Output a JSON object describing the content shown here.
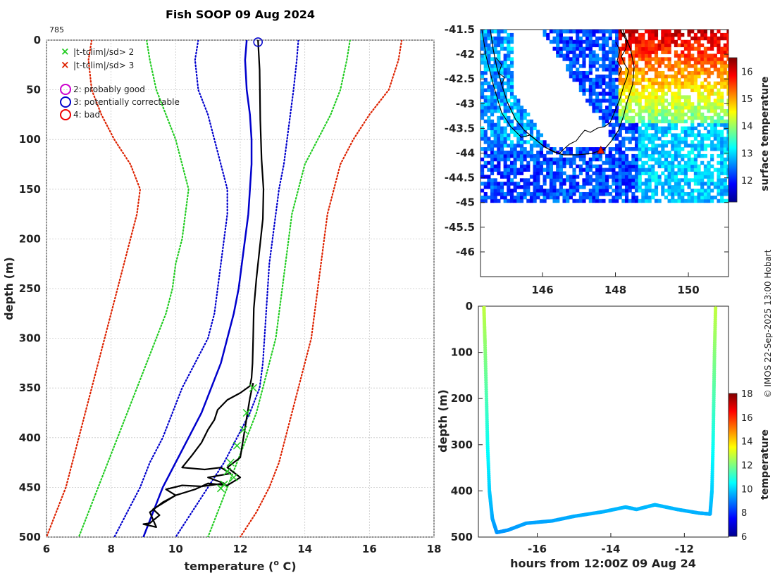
{
  "title": "Fish SOOP 09 Aug 2024",
  "profile_id": "785",
  "credit": "© IMOS 22-Sep-2025 13:00 Hobart",
  "legend": {
    "flag2": "|t-tclim|/sd> 2",
    "flag3": "|t-tclim|/sd> 3",
    "qc2": "2: probably good",
    "qc3": "3: potentially correctable",
    "qc4": "4: bad"
  },
  "colors": {
    "green": "#22cc22",
    "red": "#dd2200",
    "blue": "#0000cc",
    "magenta": "#cc00cc",
    "black": "#000000"
  },
  "chart_data": [
    {
      "type": "line",
      "name": "profile",
      "xlabel_prefix": "temperature (",
      "xlabel_sup": "o",
      "xlabel_suffix": " C)",
      "ylabel": "depth (m)",
      "xlim": [
        6,
        18
      ],
      "ylim": [
        500,
        0
      ],
      "xticks": [
        "6",
        "8",
        "10",
        "12",
        "14",
        "16",
        "18"
      ],
      "yticks": [
        "0",
        "50",
        "100",
        "150",
        "200",
        "250",
        "300",
        "350",
        "400",
        "450",
        "500"
      ],
      "depth": [
        0,
        20,
        50,
        75,
        100,
        125,
        150,
        175,
        200,
        225,
        250,
        275,
        300,
        325,
        350,
        375,
        400,
        425,
        450,
        475,
        500
      ],
      "series": [
        {
          "name": "clim -3sd",
          "color": "red",
          "style": "dotted",
          "values": [
            7.4,
            7.3,
            7.4,
            7.7,
            8.1,
            8.6,
            8.9,
            8.8,
            8.6,
            8.4,
            8.2,
            8.0,
            7.8,
            7.6,
            7.4,
            7.2,
            7.0,
            6.8,
            6.6,
            6.3,
            6.0
          ]
        },
        {
          "name": "clim -2sd",
          "color": "green",
          "style": "dotted",
          "values": [
            9.1,
            9.2,
            9.4,
            9.7,
            10.0,
            10.2,
            10.4,
            10.3,
            10.2,
            10.0,
            9.9,
            9.7,
            9.4,
            9.1,
            8.8,
            8.5,
            8.2,
            7.9,
            7.6,
            7.3,
            7.0
          ]
        },
        {
          "name": "clim -1sd",
          "color": "blue",
          "style": "dotted",
          "values": [
            10.7,
            10.6,
            10.7,
            11.0,
            11.2,
            11.4,
            11.6,
            11.6,
            11.5,
            11.4,
            11.3,
            11.2,
            11.0,
            10.6,
            10.2,
            9.9,
            9.6,
            9.2,
            8.9,
            8.5,
            8.1
          ]
        },
        {
          "name": "climatology",
          "color": "blue",
          "style": "solid",
          "values": [
            12.2,
            12.15,
            12.2,
            12.3,
            12.35,
            12.35,
            12.3,
            12.25,
            12.15,
            12.05,
            11.95,
            11.8,
            11.6,
            11.4,
            11.1,
            10.8,
            10.4,
            10.0,
            9.6,
            9.3,
            9.0
          ]
        },
        {
          "name": "clim +1sd",
          "color": "blue",
          "style": "dotted",
          "values": [
            13.8,
            13.75,
            13.65,
            13.55,
            13.45,
            13.35,
            13.2,
            13.1,
            13.0,
            12.9,
            12.85,
            12.8,
            12.75,
            12.7,
            12.6,
            12.3,
            11.9,
            11.5,
            11.0,
            10.5,
            10.0
          ]
        },
        {
          "name": "clim +2sd",
          "color": "green",
          "style": "dotted",
          "values": [
            15.4,
            15.3,
            15.1,
            14.8,
            14.4,
            14.0,
            13.8,
            13.6,
            13.5,
            13.4,
            13.3,
            13.2,
            13.1,
            12.9,
            12.7,
            12.5,
            12.2,
            11.9,
            11.6,
            11.3,
            11.0
          ]
        },
        {
          "name": "clim +3sd",
          "color": "red",
          "style": "dotted",
          "values": [
            17.0,
            16.9,
            16.6,
            16.0,
            15.5,
            15.1,
            14.9,
            14.7,
            14.6,
            14.5,
            14.4,
            14.3,
            14.2,
            14.0,
            13.8,
            13.6,
            13.4,
            13.2,
            12.9,
            12.5,
            12.0
          ]
        }
      ],
      "observed": {
        "name": "observed profile",
        "color": "black",
        "points": [
          [
            12.55,
            0
          ],
          [
            12.6,
            30
          ],
          [
            12.62,
            80
          ],
          [
            12.66,
            120
          ],
          [
            12.72,
            150
          ],
          [
            12.7,
            180
          ],
          [
            12.6,
            210
          ],
          [
            12.5,
            240
          ],
          [
            12.42,
            270
          ],
          [
            12.4,
            300
          ],
          [
            12.38,
            325
          ],
          [
            12.35,
            340
          ],
          [
            12.3,
            348
          ],
          [
            12.0,
            355
          ],
          [
            11.6,
            362
          ],
          [
            11.3,
            372
          ],
          [
            11.2,
            382
          ],
          [
            11.0,
            392
          ],
          [
            10.8,
            405
          ],
          [
            10.5,
            418
          ],
          [
            10.2,
            430
          ],
          [
            10.9,
            432
          ],
          [
            11.4,
            430
          ],
          [
            11.7,
            436
          ],
          [
            11.0,
            440
          ],
          [
            11.5,
            446
          ],
          [
            10.8,
            449
          ],
          [
            10.2,
            448
          ],
          [
            9.7,
            452
          ],
          [
            10.0,
            458
          ],
          [
            9.6,
            466
          ],
          [
            9.3,
            472
          ],
          [
            9.5,
            478
          ],
          [
            9.2,
            486
          ],
          [
            9.0,
            487
          ],
          [
            9.4,
            490
          ],
          [
            9.2,
            475
          ],
          [
            9.6,
            465
          ],
          [
            10.0,
            458
          ],
          [
            10.6,
            452
          ],
          [
            11.0,
            446
          ],
          [
            11.6,
            448
          ],
          [
            12.0,
            440
          ],
          [
            11.6,
            430
          ],
          [
            12.0,
            420
          ],
          [
            12.1,
            400
          ],
          [
            12.2,
            380
          ],
          [
            12.3,
            360
          ],
          [
            12.4,
            345
          ]
        ]
      },
      "flagged_2sd": [
        [
          12.4,
          350
        ],
        [
          12.2,
          375
        ],
        [
          12.1,
          392
        ],
        [
          11.9,
          408
        ],
        [
          11.7,
          425
        ],
        [
          11.6,
          434
        ],
        [
          11.8,
          440
        ],
        [
          11.5,
          447
        ],
        [
          11.4,
          451
        ]
      ],
      "qc_flag": {
        "x": 12.55,
        "y": 2,
        "class": "3: potentially correctable"
      }
    },
    {
      "type": "heatmap",
      "name": "sst_map",
      "xlim": [
        144.3,
        151.1
      ],
      "ylim": [
        -46.5,
        -41.5
      ],
      "xticks": [
        "146",
        "148",
        "150"
      ],
      "yticks": [
        "-41.5",
        "-42",
        "-42.5",
        "-43",
        "-43.5",
        "-44",
        "-44.5",
        "-45",
        "-45.5",
        "-46"
      ],
      "colorbar_label": "surface temperature",
      "colorbar_range": [
        11.2,
        16.5
      ],
      "colorbar_ticks": [
        "12",
        "13",
        "14",
        "15",
        "16"
      ],
      "profile_location": [
        147.6,
        -43.95
      ],
      "data_extent_lat": [
        -45,
        -41.5
      ]
    },
    {
      "type": "scatter",
      "name": "depth_time",
      "xlabel": "hours from 12:00Z 09 Aug 24",
      "ylabel": "depth (m)",
      "xlim": [
        -17.6,
        -10.8
      ],
      "ylim": [
        500,
        0
      ],
      "xticks": [
        "-16",
        "-14",
        "-12"
      ],
      "yticks": [
        "0",
        "100",
        "200",
        "300",
        "400",
        "500"
      ],
      "colorbar_label": "temperature",
      "colorbar_range": [
        6,
        18
      ],
      "colorbar_ticks": [
        "6",
        "8",
        "10",
        "12",
        "14",
        "16",
        "18"
      ],
      "track": [
        [
          -17.45,
          0
        ],
        [
          -17.42,
          80
        ],
        [
          -17.38,
          200
        ],
        [
          -17.35,
          300
        ],
        [
          -17.3,
          400
        ],
        [
          -17.22,
          460
        ],
        [
          -17.1,
          490
        ],
        [
          -16.8,
          485
        ],
        [
          -16.3,
          470
        ],
        [
          -15.6,
          465
        ],
        [
          -15.0,
          455
        ],
        [
          -14.2,
          445
        ],
        [
          -13.6,
          435
        ],
        [
          -13.3,
          440
        ],
        [
          -12.8,
          430
        ],
        [
          -12.2,
          440
        ],
        [
          -11.6,
          448
        ],
        [
          -11.3,
          450
        ],
        [
          -11.25,
          400
        ],
        [
          -11.22,
          300
        ],
        [
          -11.2,
          200
        ],
        [
          -11.18,
          100
        ],
        [
          -11.15,
          0
        ]
      ],
      "temp_surface": 12.8,
      "temp_bottom": 9.2
    }
  ]
}
